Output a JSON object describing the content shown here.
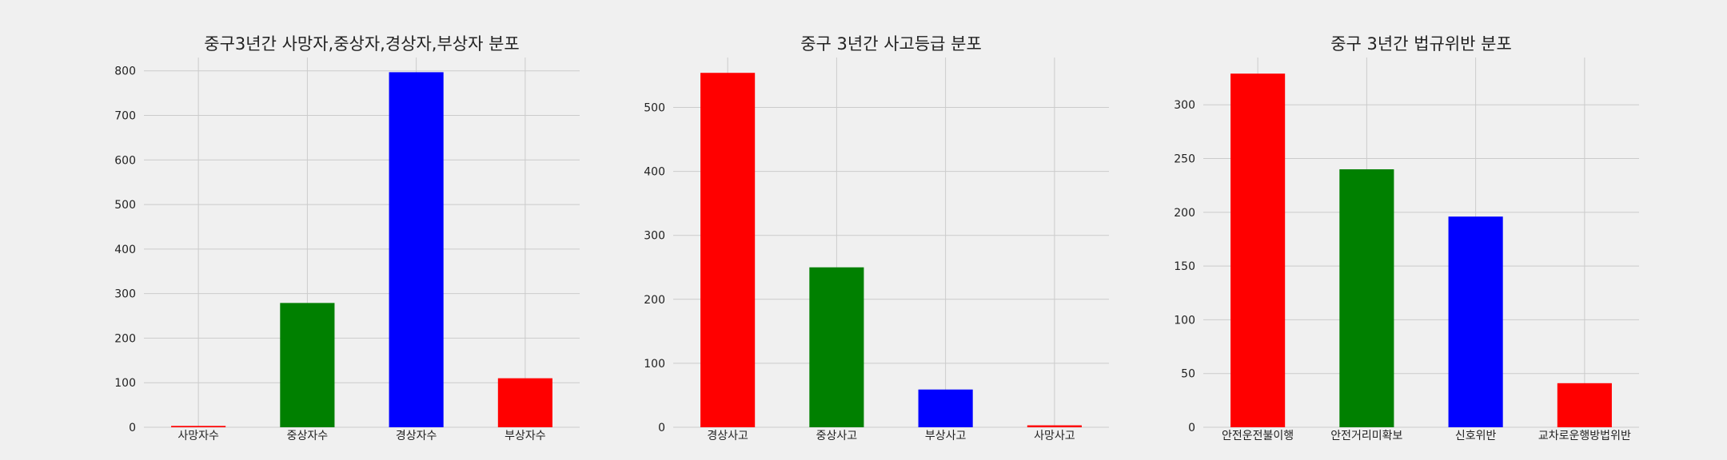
{
  "chart_data": [
    {
      "type": "bar",
      "title": "중구3년간 사망자,중상자,경상자,부상자 분포",
      "categories": [
        "사망자수",
        "중상자수",
        "경상자수",
        "부상자수"
      ],
      "values": [
        3,
        279,
        797,
        110
      ],
      "colors": [
        "#ff0000",
        "#008000",
        "#0000ff",
        "#ff0000"
      ],
      "ylim": [
        0,
        830
      ],
      "yticks": [
        0,
        100,
        200,
        300,
        400,
        500,
        600,
        700,
        800
      ],
      "grid": true
    },
    {
      "type": "bar",
      "title": "중구 3년간 사고등급 분포",
      "categories": [
        "경상사고",
        "중상사고",
        "부상사고",
        "사망사고"
      ],
      "values": [
        554,
        250,
        59,
        3
      ],
      "colors": [
        "#ff0000",
        "#008000",
        "#0000ff",
        "#ff0000"
      ],
      "ylim": [
        0,
        578
      ],
      "yticks": [
        0,
        100,
        200,
        300,
        400,
        500
      ],
      "grid": true
    },
    {
      "type": "bar",
      "title": "중구 3년간 법규위반 분포",
      "categories": [
        "안전운전불이행",
        "안전거리미확보",
        "신호위반",
        "교차로운행방법위반"
      ],
      "values": [
        329,
        240,
        196,
        41
      ],
      "colors": [
        "#ff0000",
        "#008000",
        "#0000ff",
        "#ff0000"
      ],
      "ylim": [
        0,
        344
      ],
      "yticks": [
        0,
        50,
        100,
        150,
        200,
        250,
        300
      ],
      "grid": true
    }
  ]
}
